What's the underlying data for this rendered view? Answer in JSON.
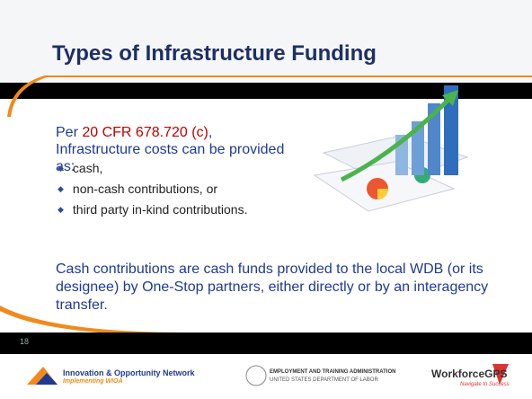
{
  "slide": {
    "title": "Types of Infrastructure Funding",
    "intro": {
      "before": "Per ",
      "citation": "20 CFR 678.720 (c)",
      "after": ", Infrastructure costs can be provided as:"
    },
    "bullets": [
      "cash,",
      "non-cash contributions, or",
      "third party in-kind contributions."
    ],
    "paragraph": "Cash contributions are cash funds provided to the local WDB (or its designee) by One-Stop partners, either directly or by an interagency transfer.",
    "page_number": "18",
    "footer": {
      "ion": {
        "name": "Innovation & Opportunity Network",
        "tagline": "Implementing WIOA"
      },
      "eta": {
        "name": "EMPLOYMENT AND TRAINING ADMINISTRATION",
        "department": "UNITED STATES DEPARTMENT OF LABOR"
      },
      "gps": {
        "name": "WorkforceGPS",
        "tagline": "Navigate to Success"
      }
    }
  }
}
